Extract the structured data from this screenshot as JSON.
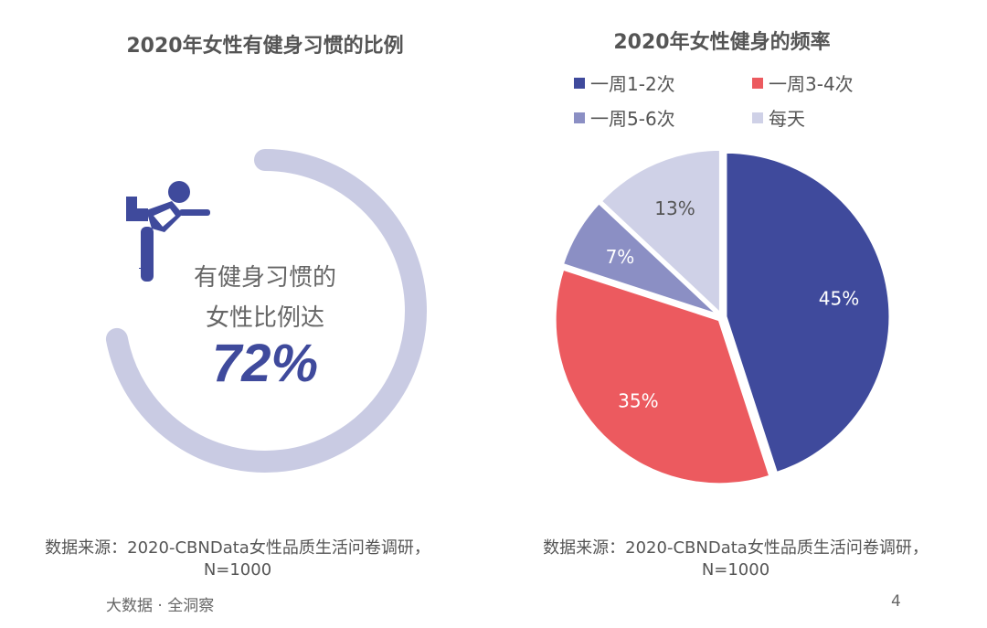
{
  "left": {
    "title": "2020年女性有健身习惯的比例",
    "line1": "有健身习惯的",
    "line2": "女性比例达",
    "value_label": "72%",
    "value": 72,
    "ring_color": "#c9cbe3",
    "icon": "yoga-woman-icon",
    "source_line1": "数据来源：2020-CBNData女性品质生活问卷调研，",
    "source_line2": "N=1000"
  },
  "chart_data": {
    "type": "pie",
    "title": "2020年女性健身的频率",
    "legend_position": "top",
    "categories": [
      "一周1-2次",
      "一周3-4次",
      "一周5-6次",
      "每天"
    ],
    "values": [
      45,
      35,
      7,
      13
    ],
    "labels": [
      "45%",
      "35%",
      "7%",
      "13%"
    ],
    "colors": [
      "#3f4a9c",
      "#ec5a5f",
      "#8b8fc4",
      "#cfd1e7"
    ],
    "source_line1": "数据来源：2020-CBNData女性品质生活问卷调研，",
    "source_line2": "N=1000"
  },
  "footer": {
    "brand": "大数据 · 全洞察",
    "page": "4"
  }
}
